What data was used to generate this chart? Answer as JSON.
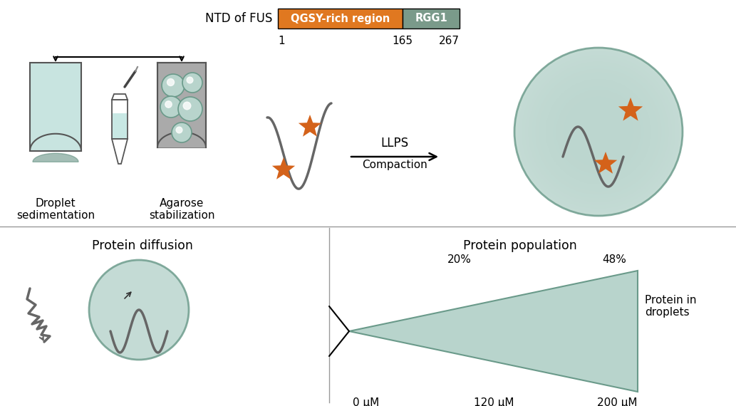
{
  "fig_width": 10.33,
  "fig_height": 5.7,
  "dpi": 100,
  "bg_color": "#ffffff",
  "ntd_label": "NTD of FUS",
  "qgsy_label": "QGSY-rich region",
  "rgg1_label": "RGG1",
  "qgsy_color": "#E07820",
  "rgg1_color": "#7A9A8A",
  "num_1": "1",
  "num_165": "165",
  "num_267": "267",
  "llps_label": "LLPS",
  "compaction_label": "Compaction",
  "droplet_sed_label": "Droplet\nsedimentation",
  "agarose_stab_label": "Agarose\nstabilization",
  "protein_diff_label": "Protein diffusion",
  "protein_pop_label": "Protein population",
  "protein_in_droplets_label": "Protein in\ndroplets",
  "pct_20": "20%",
  "pct_48": "48%",
  "conc_0": "0 μM",
  "conc_120": "120 μM",
  "conc_200": "200 μM",
  "star_color": "#D4621A",
  "curve_color": "#666666",
  "droplet_fill": "#b8d4cc",
  "droplet_stroke": "#6a9a8a",
  "triangle_fill": "#b8d4cc",
  "triangle_stroke": "#6a9a8a",
  "tube_fill": "#c8e4e0",
  "tube_stroke": "#555555",
  "agarose_fill": "#aaaaaa",
  "sed_color": "#5a8a7a",
  "divider_color": "#999999"
}
